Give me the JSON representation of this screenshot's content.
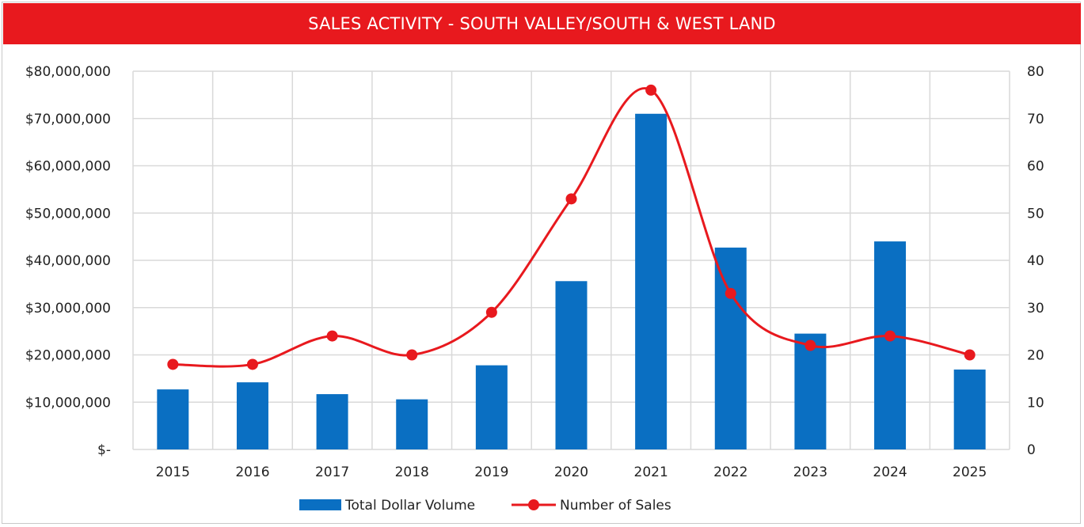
{
  "chart_data": {
    "type": "bar",
    "title": "SALES ACTIVITY - SOUTH VALLEY/SOUTH & WEST LAND",
    "categories": [
      "2015",
      "2016",
      "2017",
      "2018",
      "2019",
      "2020",
      "2021",
      "2022",
      "2023",
      "2024",
      "2025"
    ],
    "series": [
      {
        "name": "Total Dollar Volume",
        "type": "bar",
        "axis": "left",
        "color": "#0a6fc2",
        "values": [
          12700000,
          14200000,
          11700000,
          10600000,
          17800000,
          35600000,
          71000000,
          42700000,
          24500000,
          44000000,
          16900000
        ]
      },
      {
        "name": "Number of Sales",
        "type": "line",
        "axis": "right",
        "smooth": true,
        "color": "#e8191e",
        "values": [
          18,
          18,
          24,
          20,
          29,
          53,
          76,
          33,
          22,
          24,
          20
        ]
      }
    ],
    "y_left": {
      "ylim": [
        0,
        80000000
      ],
      "ticks": [
        0,
        10000000,
        20000000,
        30000000,
        40000000,
        50000000,
        60000000,
        70000000,
        80000000
      ],
      "tick_labels": [
        "$-",
        "$10,000,000",
        "$20,000,000",
        "$30,000,000",
        "$40,000,000",
        "$50,000,000",
        "$60,000,000",
        "$70,000,000",
        "$80,000,000"
      ]
    },
    "y_right": {
      "ylim": [
        0,
        80
      ],
      "ticks": [
        0,
        10,
        20,
        30,
        40,
        50,
        60,
        70,
        80
      ],
      "tick_labels": [
        "0",
        "10",
        "20",
        "30",
        "40",
        "50",
        "60",
        "70",
        "80"
      ]
    },
    "grid": true,
    "legend": "bottom-center"
  }
}
